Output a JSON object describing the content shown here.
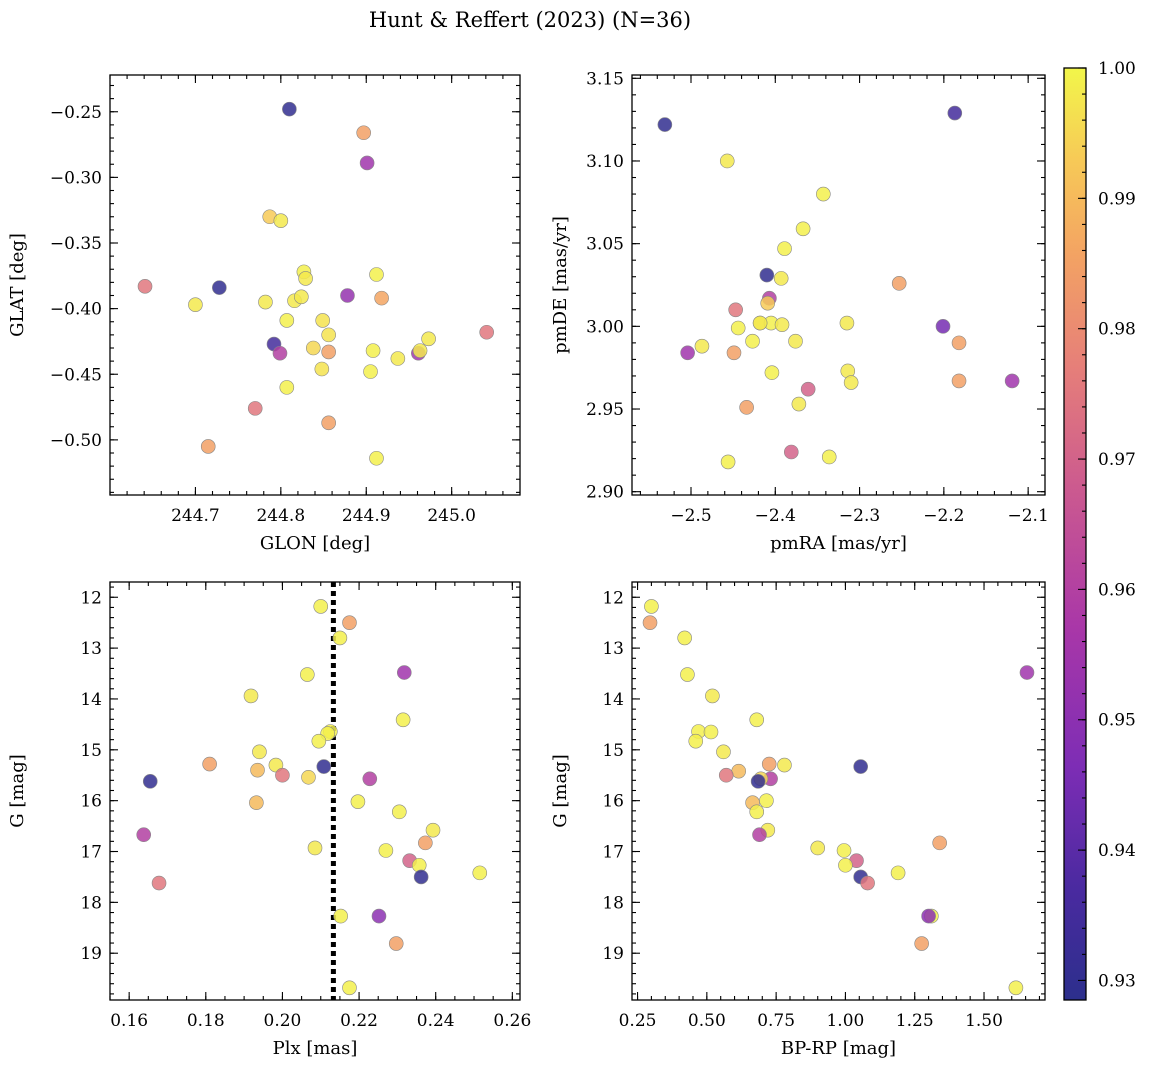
{
  "figure": {
    "title": "Hunt & Reffert (2023) (N=36)"
  },
  "chart_data": [
    {
      "type": "scatter",
      "panel": "top-left",
      "xlabel": "GLON [deg]",
      "ylabel": "GLAT [deg]",
      "xlim": [
        244.6,
        245.08
      ],
      "ylim": [
        -0.542,
        -0.222
      ],
      "y_inverted": false,
      "xticks": [
        244.7,
        244.8,
        244.9,
        245.0
      ],
      "xtick_labels": [
        "244.7",
        "244.8",
        "244.9",
        "245.0"
      ],
      "yticks": [
        -0.5,
        -0.45,
        -0.4,
        -0.35,
        -0.3,
        -0.25
      ],
      "ytick_labels": [
        "−0.50",
        "−0.45",
        "−0.40",
        "−0.35",
        "−0.30",
        "−0.25"
      ],
      "points": [
        {
          "x": 244.81,
          "y": -0.248,
          "c": 0.93
        },
        {
          "x": 244.897,
          "y": -0.266,
          "c": 0.985
        },
        {
          "x": 244.901,
          "y": -0.289,
          "c": 0.955
        },
        {
          "x": 244.787,
          "y": -0.33,
          "c": 0.993
        },
        {
          "x": 244.8,
          "y": -0.333,
          "c": 0.998
        },
        {
          "x": 244.641,
          "y": -0.383,
          "c": 0.975
        },
        {
          "x": 244.728,
          "y": -0.384,
          "c": 0.93
        },
        {
          "x": 244.7,
          "y": -0.397,
          "c": 0.998
        },
        {
          "x": 244.782,
          "y": -0.395,
          "c": 0.998
        },
        {
          "x": 244.827,
          "y": -0.372,
          "c": 0.999
        },
        {
          "x": 244.829,
          "y": -0.377,
          "c": 0.998
        },
        {
          "x": 244.816,
          "y": -0.394,
          "c": 0.998
        },
        {
          "x": 244.824,
          "y": -0.391,
          "c": 0.998
        },
        {
          "x": 244.878,
          "y": -0.39,
          "c": 0.952
        },
        {
          "x": 244.912,
          "y": -0.374,
          "c": 0.999
        },
        {
          "x": 244.918,
          "y": -0.392,
          "c": 0.986
        },
        {
          "x": 244.807,
          "y": -0.409,
          "c": 0.999
        },
        {
          "x": 244.849,
          "y": -0.409,
          "c": 0.997
        },
        {
          "x": 244.856,
          "y": -0.42,
          "c": 0.997
        },
        {
          "x": 244.838,
          "y": -0.43,
          "c": 0.995
        },
        {
          "x": 244.856,
          "y": -0.433,
          "c": 0.985
        },
        {
          "x": 244.792,
          "y": -0.427,
          "c": 0.935
        },
        {
          "x": 244.799,
          "y": -0.434,
          "c": 0.96
        },
        {
          "x": 244.908,
          "y": -0.432,
          "c": 0.999
        },
        {
          "x": 244.937,
          "y": -0.438,
          "c": 0.998
        },
        {
          "x": 244.961,
          "y": -0.434,
          "c": 0.955
        },
        {
          "x": 244.963,
          "y": -0.432,
          "c": 0.998
        },
        {
          "x": 244.973,
          "y": -0.423,
          "c": 0.998
        },
        {
          "x": 244.848,
          "y": -0.446,
          "c": 0.997
        },
        {
          "x": 244.905,
          "y": -0.448,
          "c": 0.999
        },
        {
          "x": 244.807,
          "y": -0.46,
          "c": 0.999
        },
        {
          "x": 244.77,
          "y": -0.476,
          "c": 0.975
        },
        {
          "x": 244.856,
          "y": -0.487,
          "c": 0.985
        },
        {
          "x": 244.715,
          "y": -0.505,
          "c": 0.985
        },
        {
          "x": 244.912,
          "y": -0.514,
          "c": 0.999
        },
        {
          "x": 245.041,
          "y": -0.418,
          "c": 0.975
        }
      ]
    },
    {
      "type": "scatter",
      "panel": "top-right",
      "xlabel": "pmRA [mas/yr]",
      "ylabel": "pmDE [mas/yr]",
      "xlim": [
        -2.57,
        -2.08
      ],
      "ylim": [
        2.898,
        3.152
      ],
      "y_inverted": false,
      "xticks": [
        -2.5,
        -2.4,
        -2.3,
        -2.2,
        -2.1
      ],
      "xtick_labels": [
        "−2.5",
        "−2.4",
        "−2.3",
        "−2.2",
        "−2.1"
      ],
      "yticks": [
        2.9,
        2.95,
        3.0,
        3.05,
        3.1,
        3.15
      ],
      "ytick_labels": [
        "2.90",
        "2.95",
        "3.00",
        "3.05",
        "3.10",
        "3.15"
      ],
      "points": [
        {
          "x": -2.531,
          "y": 3.122,
          "c": 0.93
        },
        {
          "x": -2.187,
          "y": 3.129,
          "c": 0.935
        },
        {
          "x": -2.457,
          "y": 3.1,
          "c": 0.998
        },
        {
          "x": -2.343,
          "y": 3.08,
          "c": 0.999
        },
        {
          "x": -2.367,
          "y": 3.059,
          "c": 0.999
        },
        {
          "x": -2.389,
          "y": 3.047,
          "c": 0.999
        },
        {
          "x": -2.41,
          "y": 3.031,
          "c": 0.93
        },
        {
          "x": -2.393,
          "y": 3.029,
          "c": 0.998
        },
        {
          "x": -2.253,
          "y": 3.026,
          "c": 0.985
        },
        {
          "x": -2.407,
          "y": 3.017,
          "c": 0.96
        },
        {
          "x": -2.409,
          "y": 3.014,
          "c": 0.993
        },
        {
          "x": -2.447,
          "y": 3.01,
          "c": 0.975
        },
        {
          "x": -2.418,
          "y": 3.002,
          "c": 0.998
        },
        {
          "x": -2.405,
          "y": 3.002,
          "c": 0.999
        },
        {
          "x": -2.392,
          "y": 3.001,
          "c": 0.998
        },
        {
          "x": -2.444,
          "y": 2.999,
          "c": 0.999
        },
        {
          "x": -2.315,
          "y": 3.002,
          "c": 0.998
        },
        {
          "x": -2.201,
          "y": 3.0,
          "c": 0.945
        },
        {
          "x": -2.427,
          "y": 2.991,
          "c": 0.999
        },
        {
          "x": -2.376,
          "y": 2.991,
          "c": 0.998
        },
        {
          "x": -2.182,
          "y": 2.99,
          "c": 0.985
        },
        {
          "x": -2.504,
          "y": 2.984,
          "c": 0.955
        },
        {
          "x": -2.487,
          "y": 2.988,
          "c": 0.998
        },
        {
          "x": -2.449,
          "y": 2.984,
          "c": 0.985
        },
        {
          "x": -2.314,
          "y": 2.973,
          "c": 0.998
        },
        {
          "x": -2.404,
          "y": 2.972,
          "c": 0.999
        },
        {
          "x": -2.31,
          "y": 2.966,
          "c": 0.998
        },
        {
          "x": -2.182,
          "y": 2.967,
          "c": 0.985
        },
        {
          "x": -2.119,
          "y": 2.967,
          "c": 0.955
        },
        {
          "x": -2.361,
          "y": 2.962,
          "c": 0.97
        },
        {
          "x": -2.372,
          "y": 2.953,
          "c": 0.998
        },
        {
          "x": -2.434,
          "y": 2.951,
          "c": 0.985
        },
        {
          "x": -2.381,
          "y": 2.924,
          "c": 0.97
        },
        {
          "x": -2.336,
          "y": 2.921,
          "c": 0.999
        },
        {
          "x": -2.456,
          "y": 2.918,
          "c": 0.999
        },
        {
          "x": -2.418,
          "y": 3.002,
          "c": 0.998
        }
      ]
    },
    {
      "type": "scatter",
      "panel": "bottom-left",
      "xlabel": "Plx [mas]",
      "ylabel": "G [mag]",
      "xlim": [
        0.155,
        0.262
      ],
      "ylim": [
        11.7,
        19.92
      ],
      "y_inverted": true,
      "xticks": [
        0.16,
        0.18,
        0.2,
        0.22,
        0.24,
        0.26
      ],
      "xtick_labels": [
        "0.16",
        "0.18",
        "0.20",
        "0.22",
        "0.24",
        "0.26"
      ],
      "yticks": [
        12,
        13,
        14,
        15,
        16,
        17,
        18,
        19
      ],
      "ytick_labels": [
        "12",
        "13",
        "14",
        "15",
        "16",
        "17",
        "18",
        "19"
      ],
      "vline": {
        "x": 0.2133,
        "style": "dotted"
      },
      "points": [
        {
          "x": 0.21,
          "y": 12.18,
          "c": 0.999
        },
        {
          "x": 0.2175,
          "y": 12.5,
          "c": 0.985
        },
        {
          "x": 0.215,
          "y": 12.8,
          "c": 0.999
        },
        {
          "x": 0.2065,
          "y": 13.52,
          "c": 0.999
        },
        {
          "x": 0.2318,
          "y": 13.48,
          "c": 0.955
        },
        {
          "x": 0.1918,
          "y": 13.94,
          "c": 0.998
        },
        {
          "x": 0.2315,
          "y": 14.41,
          "c": 0.999
        },
        {
          "x": 0.2125,
          "y": 14.64,
          "c": 0.999
        },
        {
          "x": 0.2118,
          "y": 14.68,
          "c": 0.999
        },
        {
          "x": 0.2095,
          "y": 14.83,
          "c": 0.999
        },
        {
          "x": 0.194,
          "y": 15.04,
          "c": 0.998
        },
        {
          "x": 0.181,
          "y": 15.28,
          "c": 0.985
        },
        {
          "x": 0.1983,
          "y": 15.3,
          "c": 0.998
        },
        {
          "x": 0.2108,
          "y": 15.33,
          "c": 0.93
        },
        {
          "x": 0.1935,
          "y": 15.4,
          "c": 0.99
        },
        {
          "x": 0.2,
          "y": 15.5,
          "c": 0.975
        },
        {
          "x": 0.2068,
          "y": 15.54,
          "c": 0.995
        },
        {
          "x": 0.2228,
          "y": 15.57,
          "c": 0.96
        },
        {
          "x": 0.1655,
          "y": 15.62,
          "c": 0.93
        },
        {
          "x": 0.1932,
          "y": 16.04,
          "c": 0.99
        },
        {
          "x": 0.2197,
          "y": 16.02,
          "c": 0.999
        },
        {
          "x": 0.2305,
          "y": 16.22,
          "c": 0.999
        },
        {
          "x": 0.2393,
          "y": 16.58,
          "c": 0.998
        },
        {
          "x": 0.1638,
          "y": 16.67,
          "c": 0.96
        },
        {
          "x": 0.2373,
          "y": 16.83,
          "c": 0.985
        },
        {
          "x": 0.2085,
          "y": 16.93,
          "c": 0.998
        },
        {
          "x": 0.227,
          "y": 16.98,
          "c": 0.999
        },
        {
          "x": 0.2332,
          "y": 17.18,
          "c": 0.97
        },
        {
          "x": 0.2357,
          "y": 17.27,
          "c": 0.999
        },
        {
          "x": 0.2515,
          "y": 17.42,
          "c": 0.999
        },
        {
          "x": 0.2362,
          "y": 17.5,
          "c": 0.93
        },
        {
          "x": 0.1678,
          "y": 17.62,
          "c": 0.975
        },
        {
          "x": 0.2152,
          "y": 18.27,
          "c": 0.999
        },
        {
          "x": 0.2252,
          "y": 18.27,
          "c": 0.95
        },
        {
          "x": 0.2297,
          "y": 18.81,
          "c": 0.985
        },
        {
          "x": 0.2175,
          "y": 19.68,
          "c": 0.999
        }
      ]
    },
    {
      "type": "scatter",
      "panel": "bottom-right",
      "xlabel": "BP-RP [mag]",
      "ylabel": "G [mag]",
      "xlim": [
        0.23,
        1.72
      ],
      "ylim": [
        11.7,
        19.92
      ],
      "y_inverted": true,
      "xticks": [
        0.25,
        0.5,
        0.75,
        1.0,
        1.25,
        1.5
      ],
      "xtick_labels": [
        "0.25",
        "0.50",
        "0.75",
        "1.00",
        "1.25",
        "1.50"
      ],
      "yticks": [
        12,
        13,
        14,
        15,
        16,
        17,
        18,
        19
      ],
      "ytick_labels": [
        "12",
        "13",
        "14",
        "15",
        "16",
        "17",
        "18",
        "19"
      ],
      "points": [
        {
          "x": 0.3,
          "y": 12.18,
          "c": 0.999
        },
        {
          "x": 0.295,
          "y": 12.5,
          "c": 0.985
        },
        {
          "x": 0.42,
          "y": 12.8,
          "c": 0.999
        },
        {
          "x": 0.43,
          "y": 13.52,
          "c": 0.999
        },
        {
          "x": 1.655,
          "y": 13.48,
          "c": 0.955
        },
        {
          "x": 0.52,
          "y": 13.94,
          "c": 0.998
        },
        {
          "x": 0.68,
          "y": 14.41,
          "c": 0.999
        },
        {
          "x": 0.47,
          "y": 14.64,
          "c": 0.999
        },
        {
          "x": 0.515,
          "y": 14.65,
          "c": 0.999
        },
        {
          "x": 0.46,
          "y": 14.83,
          "c": 0.999
        },
        {
          "x": 0.56,
          "y": 15.04,
          "c": 0.998
        },
        {
          "x": 0.725,
          "y": 15.28,
          "c": 0.985
        },
        {
          "x": 0.78,
          "y": 15.3,
          "c": 0.998
        },
        {
          "x": 1.055,
          "y": 15.33,
          "c": 0.93
        },
        {
          "x": 0.615,
          "y": 15.42,
          "c": 0.99
        },
        {
          "x": 0.57,
          "y": 15.5,
          "c": 0.975
        },
        {
          "x": 0.73,
          "y": 15.57,
          "c": 0.96
        },
        {
          "x": 0.695,
          "y": 15.57,
          "c": 0.995
        },
        {
          "x": 0.685,
          "y": 15.62,
          "c": 0.93
        },
        {
          "x": 0.665,
          "y": 16.04,
          "c": 0.99
        },
        {
          "x": 0.715,
          "y": 16.0,
          "c": 0.999
        },
        {
          "x": 0.68,
          "y": 16.22,
          "c": 0.999
        },
        {
          "x": 0.72,
          "y": 16.58,
          "c": 0.998
        },
        {
          "x": 0.69,
          "y": 16.67,
          "c": 0.96
        },
        {
          "x": 1.34,
          "y": 16.83,
          "c": 0.985
        },
        {
          "x": 0.9,
          "y": 16.93,
          "c": 0.998
        },
        {
          "x": 0.995,
          "y": 16.98,
          "c": 0.999
        },
        {
          "x": 1.04,
          "y": 17.18,
          "c": 0.97
        },
        {
          "x": 1.0,
          "y": 17.27,
          "c": 0.999
        },
        {
          "x": 1.19,
          "y": 17.42,
          "c": 0.999
        },
        {
          "x": 1.055,
          "y": 17.5,
          "c": 0.93
        },
        {
          "x": 1.08,
          "y": 17.62,
          "c": 0.975
        },
        {
          "x": 1.31,
          "y": 18.27,
          "c": 0.999
        },
        {
          "x": 1.3,
          "y": 18.27,
          "c": 0.95
        },
        {
          "x": 1.275,
          "y": 18.81,
          "c": 0.985
        },
        {
          "x": 1.615,
          "y": 19.68,
          "c": 0.999
        }
      ]
    }
  ],
  "colorbar": {
    "colormap": "plasma",
    "range": [
      0.9285,
      1.0
    ],
    "ticks": [
      0.93,
      0.94,
      0.95,
      0.96,
      0.97,
      0.98,
      0.99,
      1.0
    ],
    "tick_labels": [
      "0.93",
      "0.94",
      "0.95",
      "0.96",
      "0.97",
      "0.98",
      "0.99",
      "1.00"
    ],
    "stops": [
      {
        "v": 0.0,
        "color": "#2c2f8c"
      },
      {
        "v": 0.12,
        "color": "#4a2aa0"
      },
      {
        "v": 0.25,
        "color": "#7d2db5"
      },
      {
        "v": 0.4,
        "color": "#a937a8"
      },
      {
        "v": 0.55,
        "color": "#cc5a8f"
      },
      {
        "v": 0.68,
        "color": "#e67f79"
      },
      {
        "v": 0.8,
        "color": "#f3a363"
      },
      {
        "v": 0.9,
        "color": "#f7c957"
      },
      {
        "v": 1.0,
        "color": "#f2f64a"
      }
    ]
  }
}
